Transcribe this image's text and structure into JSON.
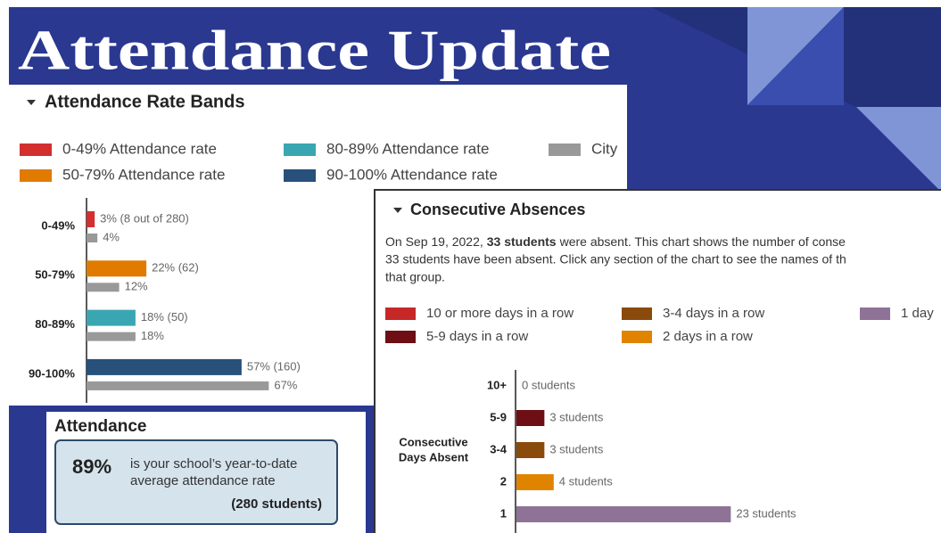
{
  "header": {
    "title": "Attendance Update"
  },
  "chart_data": [
    {
      "type": "bar",
      "orientation": "horizontal",
      "title": "Attendance Rate Bands",
      "categories": [
        "0-49%",
        "50-79%",
        "80-89%",
        "90-100%"
      ],
      "legend": [
        {
          "label": "0-49% Attendance rate",
          "color": "#d32f2f"
        },
        {
          "label": "50-79% Attendance rate",
          "color": "#e07b00"
        },
        {
          "label": "80-89% Attendance rate",
          "color": "#3aa6b1"
        },
        {
          "label": "90-100% Attendance rate",
          "color": "#27507a"
        },
        {
          "label": "City",
          "color": "#999999"
        }
      ],
      "series": [
        {
          "colors": [
            "#d32f2f",
            "#e07b00",
            "#3aa6b1",
            "#27507a"
          ],
          "values": [
            3,
            22,
            18,
            57
          ],
          "value_labels": [
            "3% (8 out of 280)",
            "22% (62)",
            "18% (50)",
            "57% (160)"
          ]
        },
        {
          "name": "City",
          "color": "#999999",
          "values": [
            4,
            12,
            18,
            67
          ],
          "value_labels": [
            "4%",
            "12%",
            "18%",
            "67%"
          ]
        }
      ]
    },
    {
      "type": "bar",
      "orientation": "horizontal",
      "title": "Consecutive Absences",
      "description": {
        "lead": "On Sep 19, 2022,",
        "bold": "33 students",
        "rest": "were absent. This chart shows the number of conse"
      },
      "description_lines": [
        "33 students have been absent. Click any section of the chart to see the names of th",
        "that group."
      ],
      "ylabel": [
        "Consecutive",
        "Days Absent"
      ],
      "legend": [
        {
          "label": "10 or more days in a row",
          "color": "#c62828"
        },
        {
          "label": "5-9 days in a row",
          "color": "#6d0f14"
        },
        {
          "label": "3-4 days in a row",
          "color": "#8a4a0c"
        },
        {
          "label": "2 days in a row",
          "color": "#e08400"
        },
        {
          "label": "1 day",
          "color": "#8e7397"
        }
      ],
      "categories": [
        "10+",
        "5-9",
        "3-4",
        "2",
        "1"
      ],
      "colors": [
        "#c62828",
        "#6d0f14",
        "#8a4a0c",
        "#e08400",
        "#8e7397"
      ],
      "values": [
        0,
        3,
        3,
        4,
        23
      ],
      "value_labels": [
        "0 students",
        "3 students",
        "3 students",
        "4 students",
        "23 students"
      ]
    }
  ],
  "attendance_card": {
    "title": "Attendance",
    "value": "89%",
    "text_lines": [
      "is your school’s year-to-date",
      "average attendance rate"
    ],
    "count": "(280 students)"
  }
}
